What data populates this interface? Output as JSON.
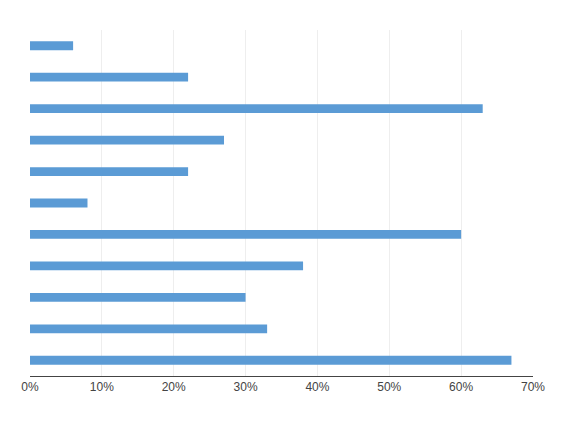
{
  "chart_data": {
    "type": "bar",
    "orientation": "horizontal",
    "categories": [
      null,
      null,
      null,
      null,
      null,
      null,
      null,
      null,
      null,
      null,
      null
    ],
    "values": [
      6,
      22,
      63,
      27,
      22,
      8,
      60,
      38,
      30,
      33,
      67
    ],
    "color": "#5B9BD5",
    "xlim": [
      0,
      70
    ],
    "xticks": [
      {
        "value": 0,
        "label": "0%"
      },
      {
        "value": 10,
        "label": "10%"
      },
      {
        "value": 20,
        "label": "20%"
      },
      {
        "value": 30,
        "label": "30%"
      },
      {
        "value": 40,
        "label": "40%"
      },
      {
        "value": 50,
        "label": "50%"
      },
      {
        "value": 60,
        "label": "60%"
      },
      {
        "value": 70,
        "label": "70%"
      }
    ],
    "grid": true,
    "tick_labels": "x"
  }
}
